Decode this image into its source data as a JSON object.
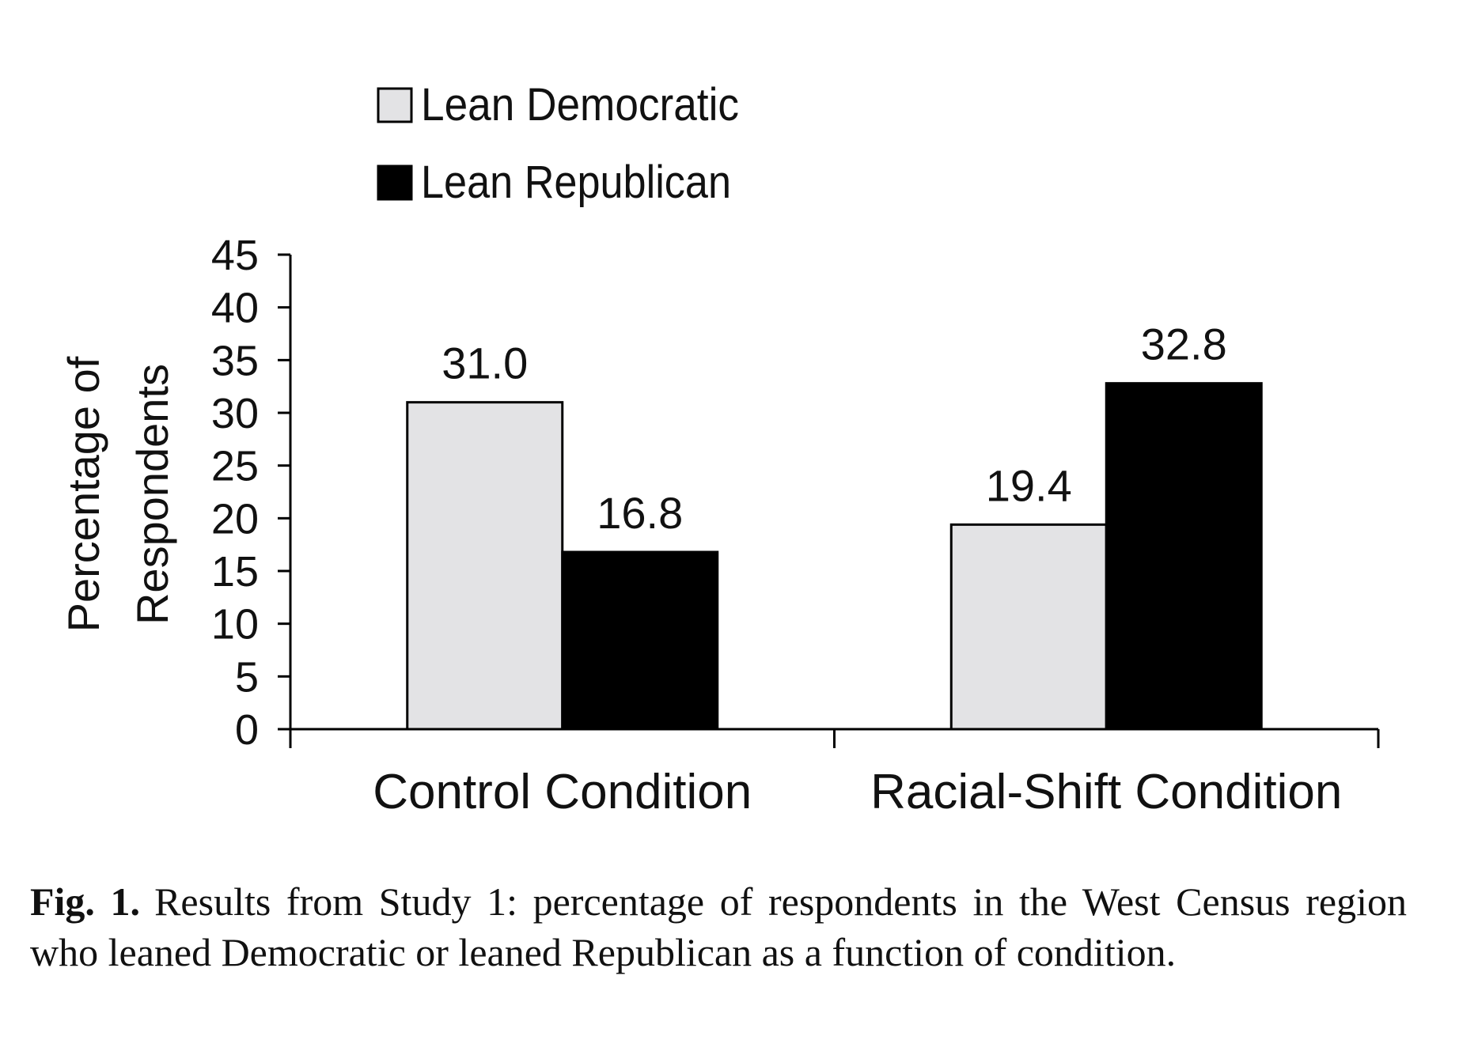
{
  "chart_data": {
    "type": "bar",
    "categories": [
      "Control Condition",
      "Racial-Shift Condition"
    ],
    "series": [
      {
        "name": "Lean Democratic",
        "values": [
          31.0,
          19.4
        ],
        "color": "#e3e3e5"
      },
      {
        "name": "Lean Republican",
        "values": [
          16.8,
          32.8
        ],
        "color": "#000000"
      }
    ],
    "data_labels": [
      [
        "31.0",
        "19.4"
      ],
      [
        "16.8",
        "32.8"
      ]
    ],
    "ylabel_lines": [
      "Percentage of",
      "Respondents"
    ],
    "ylim": [
      0,
      45
    ],
    "yticks": [
      0,
      5,
      10,
      15,
      20,
      25,
      30,
      35,
      40,
      45
    ],
    "legend_position": "top-left",
    "grid": false
  },
  "caption": {
    "label": "Fig. 1.",
    "text": "Results from Study 1: percentage of respondents in the West Census region who leaned Democratic or leaned Republican as a function of condition."
  }
}
